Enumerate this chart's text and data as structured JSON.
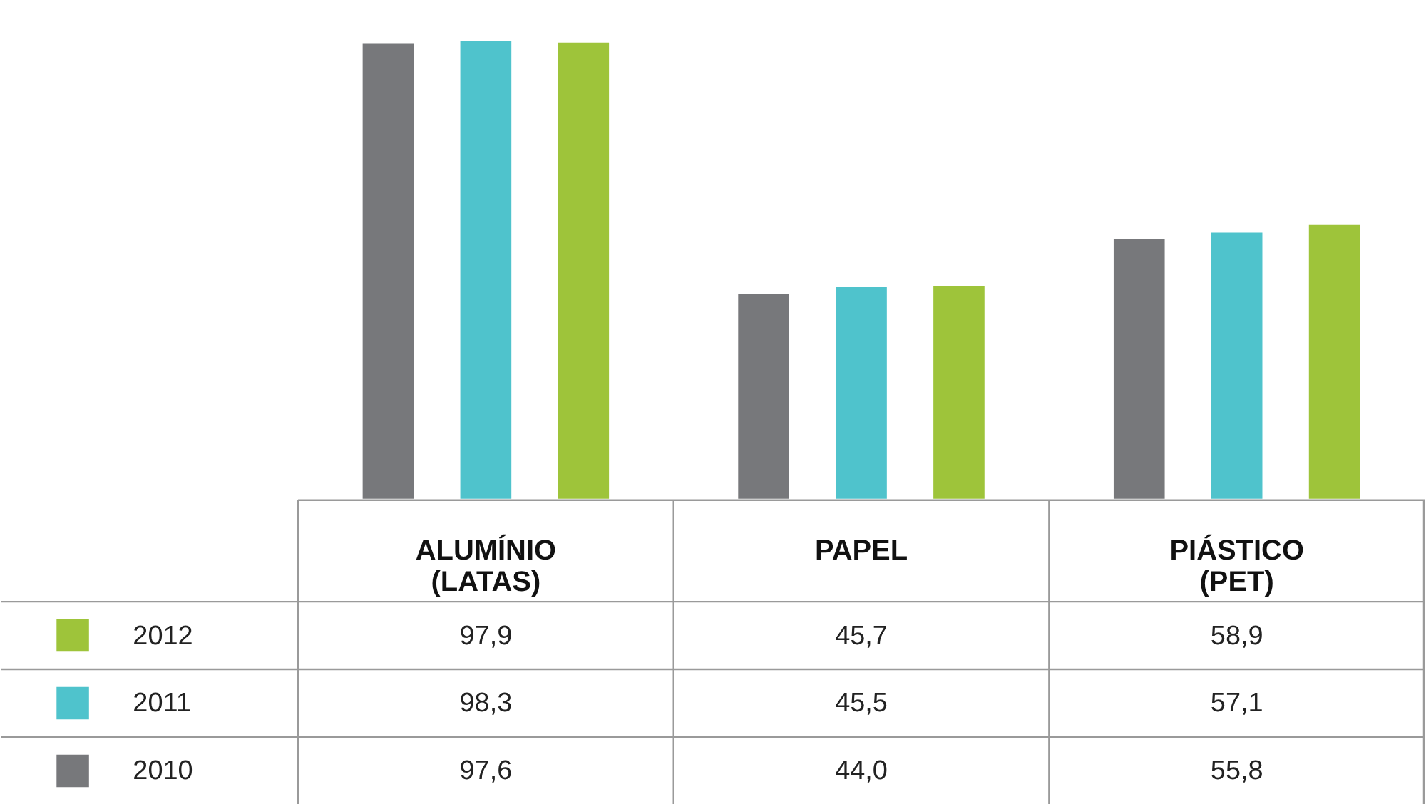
{
  "chart_data": {
    "type": "bar",
    "categories": [
      "ALUMÍNIO (LATAS)",
      "PAPEL",
      "PIÁSTICO (PET)"
    ],
    "series": [
      {
        "name": "2010",
        "color": "#77787b",
        "values": [
          97.6,
          44.0,
          55.8
        ],
        "value_labels": [
          "97,6",
          "44,0",
          "55,8"
        ]
      },
      {
        "name": "2011",
        "color": "#4fc3cc",
        "values": [
          98.3,
          45.5,
          57.1
        ],
        "value_labels": [
          "98,3",
          "45,5",
          "57,1"
        ]
      },
      {
        "name": "2012",
        "color": "#9ec43a",
        "values": [
          97.9,
          45.7,
          58.9
        ],
        "value_labels": [
          "97,9",
          "45,7",
          "58,9"
        ]
      }
    ],
    "legend": "bottom left"
  }
}
